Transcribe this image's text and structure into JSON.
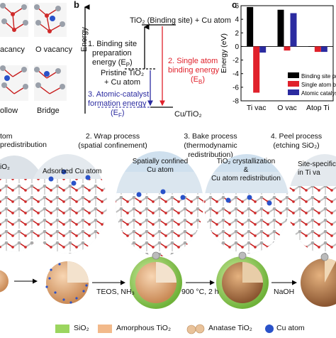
{
  "panel_a": {
    "labels": [
      "acancy",
      "O vacancy",
      "ollow",
      "Bridge"
    ]
  },
  "panel_b": {
    "letter": "b",
    "top_state": "TiO₂ (Binding site) + Cu atom",
    "energy_axis": "Energy",
    "step1": [
      "1. Binding site",
      "preparation",
      "energy (E"
    ],
    "step1_sub": "P",
    "step2": [
      "2. Single atom",
      "binding energy",
      "(E"
    ],
    "step2_sub": "B",
    "step3": [
      "3. Atomic-catalyst",
      "formation energy",
      "(E"
    ],
    "step3_sub": "F",
    "mid_state": [
      "Pristine TiO₂",
      "+ Cu atom"
    ],
    "bottom_state": "Cu/TiO₂"
  },
  "panel_c": {
    "letter": "c",
    "legend": [
      "Binding site pre",
      "Single atom bind",
      "Atomic catalyst"
    ]
  },
  "chart_data": {
    "type": "bar",
    "categories": [
      "Ti vac",
      "O vac",
      "Atop Ti"
    ],
    "ylabel": "Energy (eV)",
    "ylim": [
      -8,
      6
    ],
    "yticks": [
      6,
      4,
      2,
      0,
      -2,
      -4,
      -6,
      -8
    ],
    "series": [
      {
        "name": "Binding site pre",
        "color": "#000000",
        "values": [
          5.8,
          5.4,
          0.0
        ]
      },
      {
        "name": "Single atom bind",
        "color": "#e0212b",
        "values": [
          -6.8,
          -0.6,
          -0.8
        ]
      },
      {
        "name": "Atomic catalyst",
        "color": "#2b2ba0",
        "values": [
          -0.9,
          4.9,
          -0.8
        ]
      }
    ]
  },
  "process": {
    "steps": [
      [
        "tom predistribution",
        ""
      ],
      [
        "2. Wrap process",
        "(spatial confinement)"
      ],
      [
        "3. Bake process",
        "(thermodynamic redistribution)"
      ],
      [
        "4. Peel process",
        "(etching SiO₂)"
      ]
    ],
    "zoom_captions": [
      "iO₂",
      "Adsorbed Cu atom",
      "Spatially confined",
      "Cu atom",
      "TiO₂ crystallization",
      "&",
      "Cu atom redistribution",
      "Site-specific",
      "in Ti va"
    ],
    "arrow_labels": [
      "TEOS, NH₃",
      "900 °C, 2 h",
      "NaOH"
    ]
  },
  "legend_bottom": {
    "items": [
      "SiO₂",
      "Amorphous TiO₂",
      "Anatase TiO₂",
      "Cu atom"
    ],
    "colors": {
      "sio2": "#9bd55f",
      "amorphous": "#f2b98a",
      "anatase": "#e9c29a",
      "cu": "#2a52c9"
    }
  }
}
